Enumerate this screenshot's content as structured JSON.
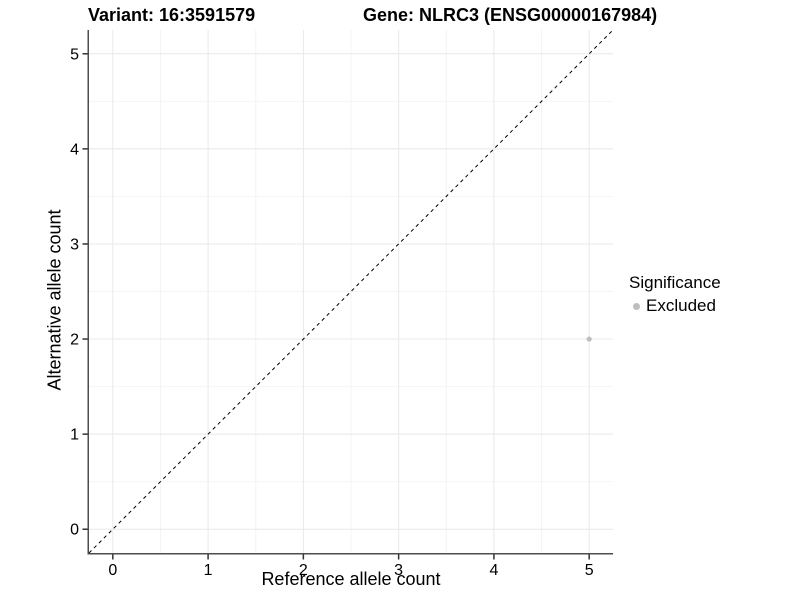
{
  "titles": {
    "variant": "Variant: 16:3591579",
    "gene": "Gene: NLRC3 (ENSG00000167984)"
  },
  "chart_data": {
    "type": "scatter",
    "xlabel": "Reference allele count",
    "ylabel": "Alternative allele count",
    "xlim": [
      -0.25,
      5.25
    ],
    "ylim": [
      -0.25,
      5.25
    ],
    "xticks": [
      0,
      1,
      2,
      3,
      4,
      5
    ],
    "yticks": [
      0,
      1,
      2,
      3,
      4,
      5
    ],
    "minor_grid_step": 0.5,
    "grid": true,
    "identity_line": {
      "style": "dashed",
      "color": "#000000",
      "from": [
        -0.25,
        -0.25
      ],
      "to": [
        5.25,
        5.25
      ]
    },
    "legend": {
      "title": "Significance",
      "position": "right",
      "items": [
        {
          "label": "Excluded",
          "color": "#bebebe"
        }
      ]
    },
    "series": [
      {
        "name": "Excluded",
        "color": "#bebebe",
        "points": [
          {
            "x": 5,
            "y": 2
          }
        ]
      }
    ]
  }
}
